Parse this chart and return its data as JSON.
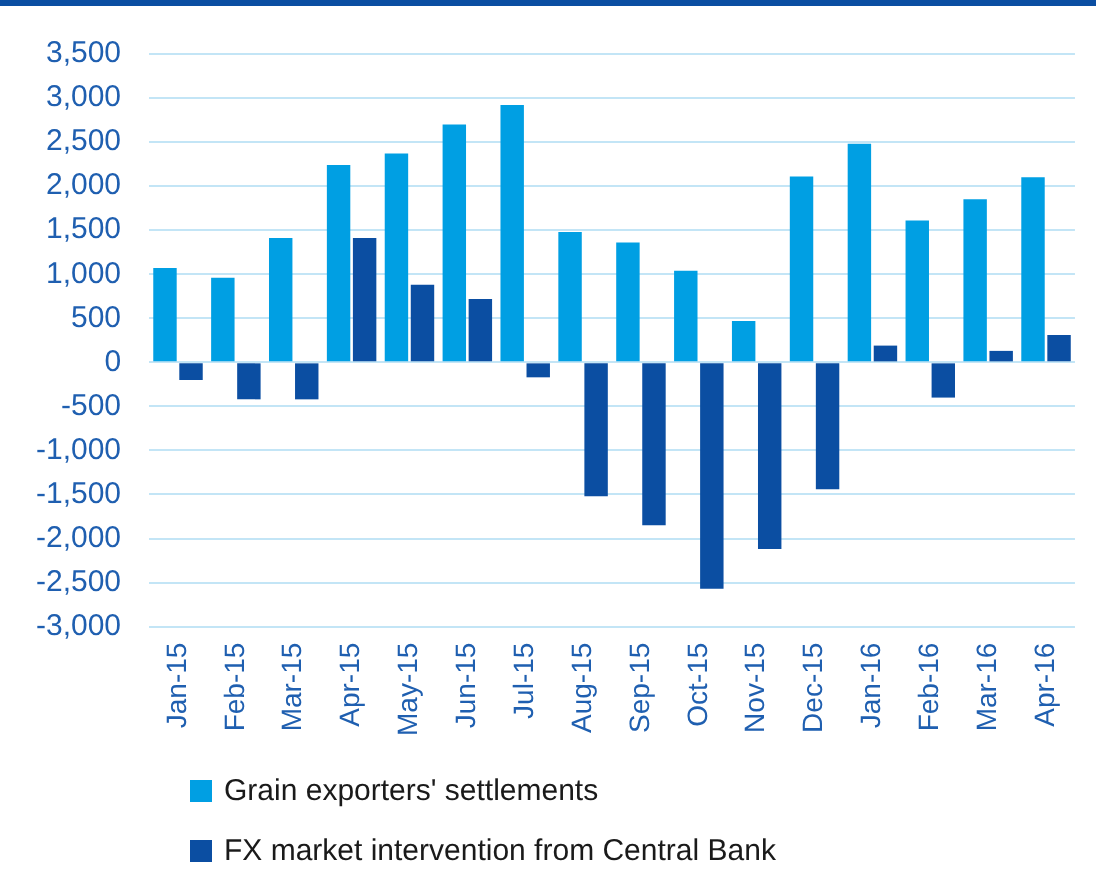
{
  "chart_data": {
    "type": "bar",
    "categories": [
      "Jan-15",
      "Feb-15",
      "Mar-15",
      "Apr-15",
      "May-15",
      "Jun-15",
      "Jul-15",
      "Aug-15",
      "Sep-15",
      "Oct-15",
      "Nov-15",
      "Dec-15",
      "Jan-16",
      "Feb-16",
      "Mar-16",
      "Apr-16"
    ],
    "series": [
      {
        "name": "Grain exporters' settlements",
        "color": "#009fe3",
        "values": [
          1070,
          960,
          1410,
          2240,
          2370,
          2700,
          2920,
          1480,
          1360,
          1040,
          470,
          2110,
          2480,
          1610,
          1850,
          2100
        ]
      },
      {
        "name": "FX market intervention from Central Bank",
        "color": "#0b4ea2",
        "values": [
          -200,
          -420,
          -420,
          1410,
          880,
          720,
          -170,
          -1520,
          -1850,
          -2570,
          -2120,
          -1440,
          190,
          -400,
          130,
          310
        ]
      }
    ],
    "ylim": [
      -3000,
      3500
    ],
    "yticks": [
      {
        "value": -3000,
        "label": "-3,000"
      },
      {
        "value": -2500,
        "label": "-2,500"
      },
      {
        "value": -2000,
        "label": "-2,000"
      },
      {
        "value": -1500,
        "label": "-1,500"
      },
      {
        "value": -1000,
        "label": "-1,000"
      },
      {
        "value": -500,
        "label": "-500"
      },
      0,
      500,
      {
        "value": 1000,
        "label": "1,000"
      },
      {
        "value": 1500,
        "label": "1,500"
      },
      {
        "value": 2000,
        "label": "2,000"
      },
      {
        "value": 2500,
        "label": "2,500"
      },
      {
        "value": 3000,
        "label": "3,000"
      },
      {
        "value": 3500,
        "label": "3,500"
      }
    ],
    "grid": "y",
    "legend": "bottom"
  }
}
